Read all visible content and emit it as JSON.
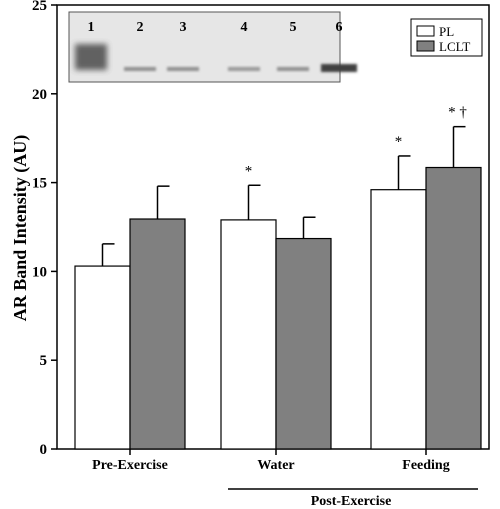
{
  "chart_data": {
    "type": "bar",
    "title": "",
    "ylabel": "AR Band Intensity (AU)",
    "xlabel": "",
    "ylim": [
      0,
      25
    ],
    "yticks": [
      0,
      5,
      10,
      15,
      20,
      25
    ],
    "categories": [
      "Pre-Exercise",
      "Water",
      "Feeding"
    ],
    "group_label": {
      "text": "Post-Exercise",
      "spans": [
        "Water",
        "Feeding"
      ]
    },
    "series": [
      {
        "name": "PL",
        "color": "#ffffff",
        "values": [
          10.3,
          12.9,
          14.6
        ],
        "errors": [
          1.25,
          1.95,
          1.9
        ]
      },
      {
        "name": "LCLT",
        "color": "#808080",
        "values": [
          12.95,
          11.85,
          15.85
        ],
        "errors": [
          1.85,
          1.2,
          2.3
        ]
      }
    ],
    "annotations": [
      {
        "category": "Water",
        "series": "PL",
        "text": "*"
      },
      {
        "category": "Feeding",
        "series": "PL",
        "text": "*"
      },
      {
        "category": "Feeding",
        "series": "LCLT",
        "text": "* †"
      }
    ],
    "legend_position": "top-right",
    "grid": false,
    "blot_inset": {
      "lanes": [
        "1",
        "2",
        "3",
        "4",
        "5",
        "6"
      ],
      "band_intensity": [
        0.85,
        0.35,
        0.35,
        0.3,
        0.35,
        0.85
      ]
    }
  }
}
